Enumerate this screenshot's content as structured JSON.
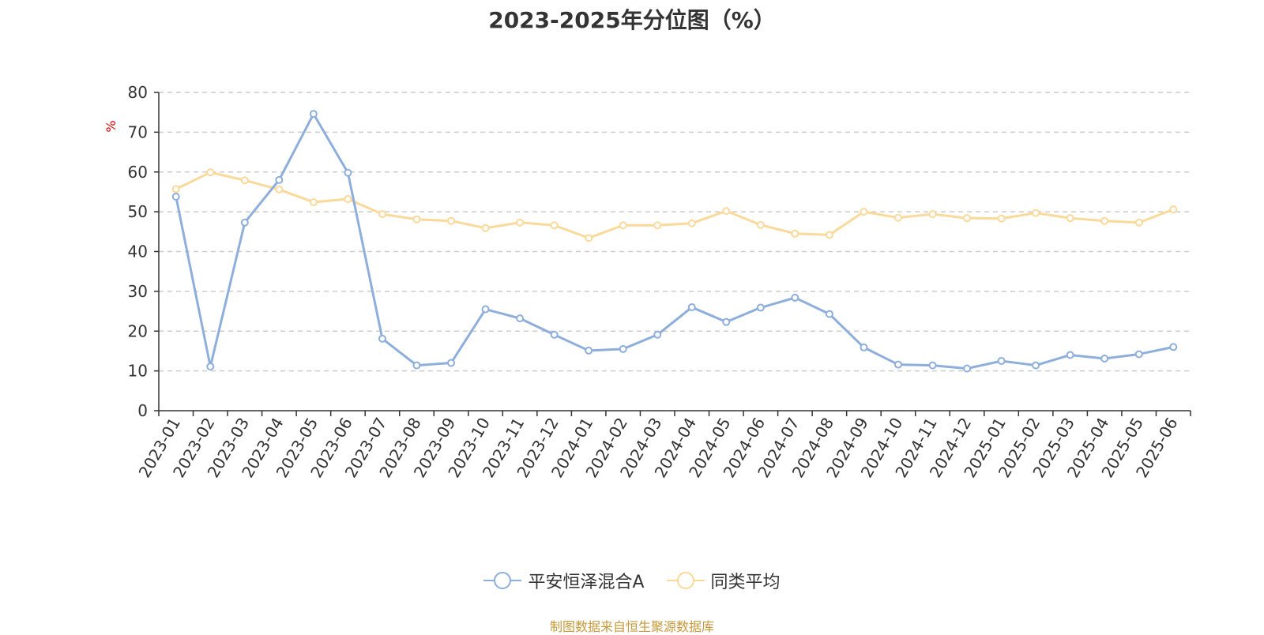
{
  "chart_data": {
    "type": "line",
    "title": "2023-2025年分位图（%）",
    "ylabel": "%",
    "xlabel": "",
    "ylim": [
      0,
      80
    ],
    "yticks": [
      0,
      10,
      20,
      30,
      40,
      50,
      60,
      70,
      80
    ],
    "grid": true,
    "legend_position": "bottom",
    "categories": [
      "2023-01",
      "2023-02",
      "2023-03",
      "2023-04",
      "2023-05",
      "2023-06",
      "2023-07",
      "2023-08",
      "2023-09",
      "2023-10",
      "2023-11",
      "2023-12",
      "2024-01",
      "2024-02",
      "2024-03",
      "2024-04",
      "2024-05",
      "2024-06",
      "2024-07",
      "2024-08",
      "2024-09",
      "2024-10",
      "2024-11",
      "2024-12",
      "2025-01",
      "2025-02",
      "2025-03",
      "2025-04",
      "2025-05",
      "2025-06"
    ],
    "series": [
      {
        "name": "平安恒泽混合A",
        "color": "#8eaedb",
        "values": [
          53.8,
          11.1,
          47.3,
          58.0,
          74.6,
          59.8,
          18.1,
          11.4,
          12.0,
          25.5,
          23.2,
          19.1,
          15.1,
          15.5,
          19.1,
          26.0,
          22.3,
          25.9,
          28.4,
          24.3,
          15.9,
          11.6,
          11.4,
          10.6,
          12.5,
          11.4,
          14.0,
          13.1,
          14.2,
          16.0
        ]
      },
      {
        "name": "同类平均",
        "color": "#fad99a",
        "values": [
          55.7,
          59.9,
          57.9,
          55.6,
          52.4,
          53.2,
          49.4,
          48.1,
          47.7,
          45.9,
          47.3,
          46.6,
          43.4,
          46.6,
          46.6,
          47.1,
          50.2,
          46.7,
          44.5,
          44.2,
          50.0,
          48.5,
          49.4,
          48.4,
          48.3,
          49.7,
          48.4,
          47.7,
          47.3,
          50.6
        ]
      }
    ]
  },
  "source_note": "制图数据来自恒生聚源数据库"
}
